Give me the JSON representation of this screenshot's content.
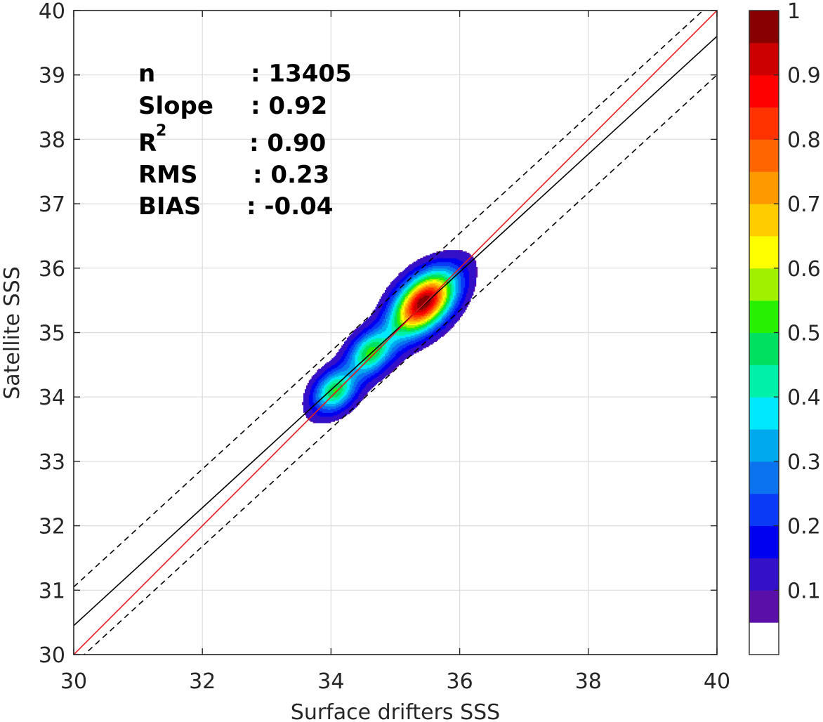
{
  "chart_data": {
    "type": "contour",
    "xlabel": "Surface drifters SSS",
    "ylabel": "Satellite SSS",
    "xlim": [
      30,
      40
    ],
    "ylim": [
      30,
      40
    ],
    "xticks": [
      "30",
      "32",
      "34",
      "36",
      "38",
      "40"
    ],
    "yticks": [
      "30",
      "31",
      "32",
      "33",
      "34",
      "35",
      "36",
      "37",
      "38",
      "39",
      "40"
    ],
    "grid": true,
    "stats": [
      {
        "name": "n",
        "value": ": 13405"
      },
      {
        "name": "Slope",
        "value": ": 0.92"
      },
      {
        "name": "R",
        "superscript": "2",
        "value": ": 0.90"
      },
      {
        "name": "RMS",
        "value": ": 0.23"
      },
      {
        "name": "BIAS",
        "value": ": -0.04"
      }
    ],
    "lines": {
      "identity": {
        "color": "#e41a1c",
        "x": [
          30,
          40
        ],
        "y": [
          30,
          40
        ]
      },
      "fit": {
        "color": "#000000",
        "x": [
          30,
          40
        ],
        "y": [
          30.45,
          39.6
        ]
      },
      "upper_bound": {
        "color": "#000000",
        "dash": true,
        "x": [
          30,
          40
        ],
        "y": [
          31.05,
          40.2
        ]
      },
      "lower_bound": {
        "color": "#000000",
        "dash": true,
        "x": [
          30,
          40
        ],
        "y": [
          29.85,
          39.0
        ]
      }
    },
    "density_peaks": [
      {
        "x": 35.45,
        "y": 35.48,
        "level": 1.0
      },
      {
        "x": 34.6,
        "y": 34.7,
        "level": 0.4
      },
      {
        "x": 34.05,
        "y": 34.1,
        "level": 0.45
      }
    ],
    "colorbar": {
      "ticks": [
        "0.1",
        "0.2",
        "0.3",
        "0.4",
        "0.5",
        "0.6",
        "0.7",
        "0.8",
        "0.9",
        "1"
      ],
      "tick_values": [
        0.1,
        0.2,
        0.3,
        0.4,
        0.5,
        0.6,
        0.7,
        0.8,
        0.9,
        1.0
      ],
      "colors": [
        "#ffffff",
        "#5a0fa8",
        "#3410c8",
        "#0000f0",
        "#0a3af5",
        "#0b72f0",
        "#00a8ee",
        "#00e8fb",
        "#00f0a8",
        "#00e060",
        "#27f000",
        "#a0f000",
        "#ffff00",
        "#ffcc00",
        "#ff9900",
        "#ff6600",
        "#ff3300",
        "#ff0000",
        "#cc0000",
        "#880000"
      ]
    }
  }
}
